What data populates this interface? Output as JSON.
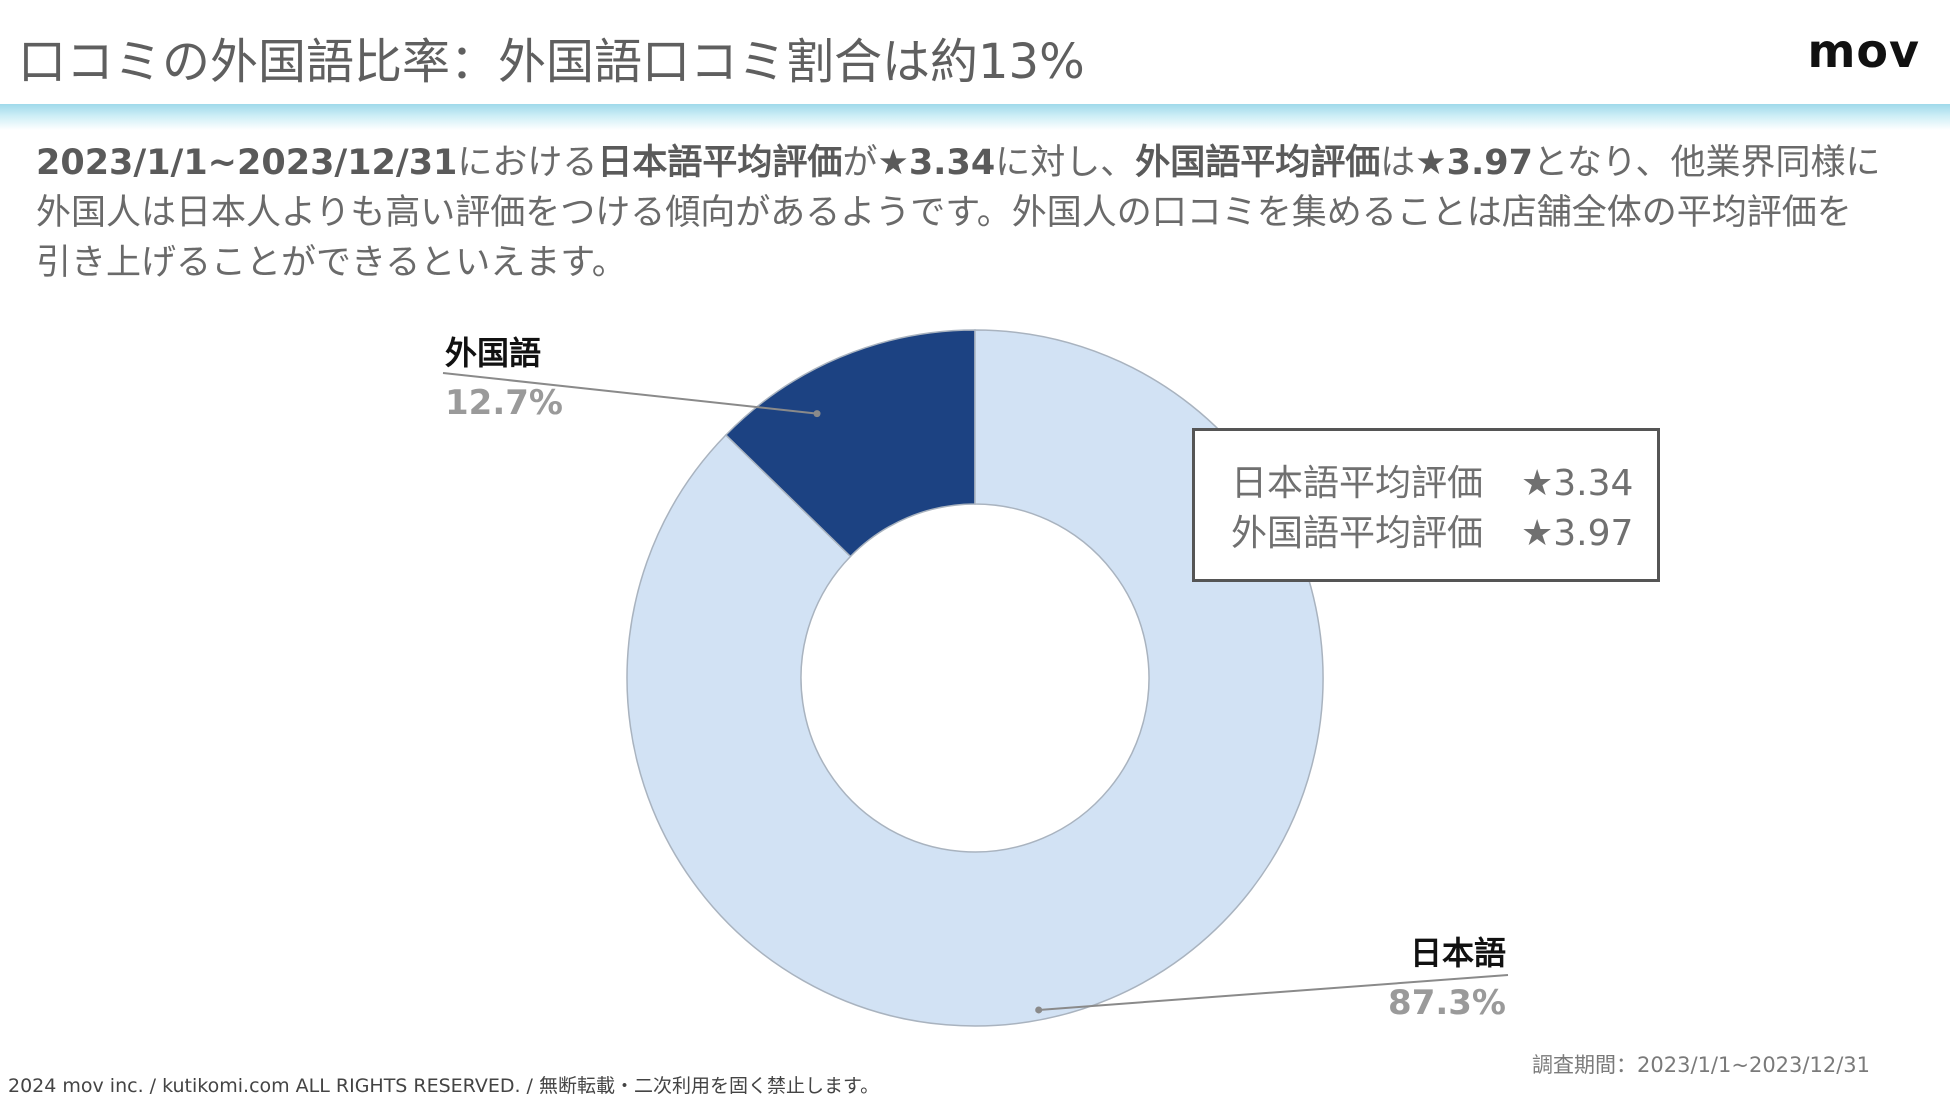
{
  "header": {
    "title": "口コミの外国語比率：外国語口コミ割合は約13%",
    "logo": "mov"
  },
  "description": {
    "line1": [
      {
        "text": "2023/1/1~2023/12/31",
        "bold": true
      },
      {
        "text": "における",
        "bold": false
      },
      {
        "text": "日本語平均評価",
        "bold": true
      },
      {
        "text": "が",
        "bold": false
      },
      {
        "text": "★3.34",
        "bold": true
      },
      {
        "text": "に対し、",
        "bold": false
      },
      {
        "text": "外国語平均評価",
        "bold": true
      },
      {
        "text": "は",
        "bold": false
      },
      {
        "text": "★3.97",
        "bold": true
      },
      {
        "text": "となり、他業界同様に",
        "bold": false
      }
    ],
    "line2": "外国人は日本人よりも高い評価をつける傾向があるようです。外国人の口コミを集めることは店舗全体の平均評価を",
    "line3": "引き上げることができるといえます。"
  },
  "legend_box": {
    "rows": [
      {
        "label": "日本語平均評価",
        "value": "★3.34"
      },
      {
        "label": "外国語平均評価",
        "value": "★3.97"
      }
    ]
  },
  "chart_data": {
    "type": "pie",
    "variant": "donut",
    "categories": [
      "外国語",
      "日本語"
    ],
    "values": [
      12.7,
      87.3
    ],
    "value_labels": [
      "12.7%",
      "87.3%"
    ],
    "colors": [
      "#1c4282",
      "#d2e2f4"
    ],
    "start": "top",
    "direction": "counterclockwise",
    "label_placement": [
      "top-left",
      "bottom-right"
    ]
  },
  "footer": {
    "left": "2024 mov inc. / kutikomi.com ALL RIGHTS RESERVED. / 無断転載・二次利用を固く禁止します。",
    "right": "調査期間：2023/1/1~2023/12/31"
  }
}
